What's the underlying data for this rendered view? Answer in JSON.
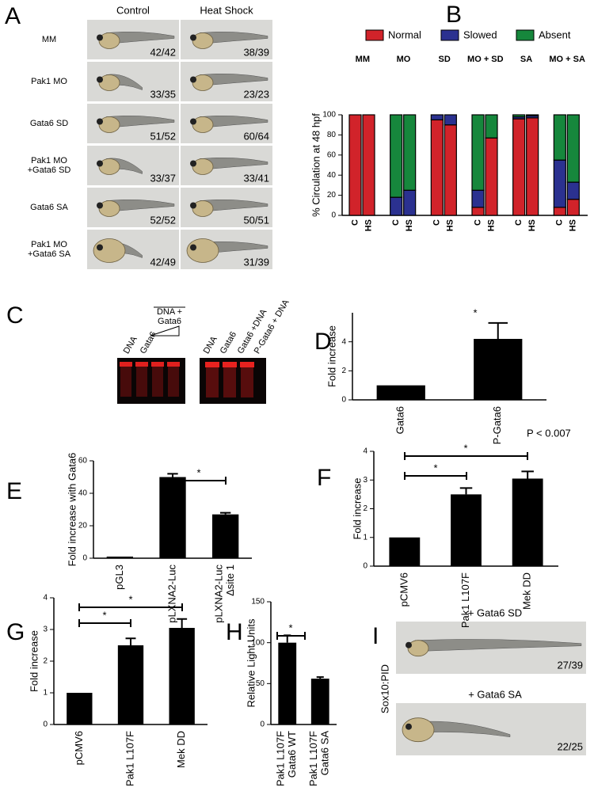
{
  "figure": {
    "panel_a": {
      "label": "A",
      "columns": [
        "Control",
        "Heat Shock"
      ],
      "rows": [
        {
          "label": "MM",
          "counts": [
            "42/42",
            "38/39"
          ]
        },
        {
          "label": "Pak1 MO",
          "counts": [
            "33/35",
            "23/23"
          ]
        },
        {
          "label": "Gata6 SD",
          "counts": [
            "51/52",
            "60/64"
          ]
        },
        {
          "label": "Pak1 MO\n+Gata6 SD",
          "counts": [
            "33/37",
            "33/41"
          ]
        },
        {
          "label": "Gata6 SA",
          "counts": [
            "52/52",
            "50/51"
          ]
        },
        {
          "label": "Pak1 MO\n+Gata6 SA",
          "counts": [
            "42/49",
            "31/39"
          ]
        }
      ]
    },
    "panel_c": {
      "label": "C",
      "left_lanes": [
        "DNA",
        "Gata6",
        "DNA +\nGata6"
      ],
      "right_lanes": [
        "DNA",
        "Gata6",
        "Gata6 +DNA",
        "P-Gata6 + DNA"
      ]
    },
    "panel_i": {
      "label": "I",
      "side_label": "Sox10:PID",
      "images": [
        {
          "caption": "+ Gata6 SD",
          "count": "27/39"
        },
        {
          "caption": "+ Gata6 SA",
          "count": "22/25"
        }
      ]
    }
  },
  "chart_data": [
    {
      "panel": "B",
      "type": "stacked_bar",
      "ylabel": "% Circulation at 48 hpf",
      "groups": [
        "MM",
        "MO",
        "SD",
        "MO + SD",
        "SA",
        "MO + SA"
      ],
      "categories": [
        "C",
        "HS",
        "C",
        "HS",
        "C",
        "HS",
        "C",
        "HS",
        "C",
        "HS",
        "C",
        "HS"
      ],
      "series": [
        {
          "name": "Normal",
          "color": "#d1232a",
          "values": [
            100,
            100,
            0,
            0,
            95,
            90,
            8,
            77,
            96,
            97,
            8,
            16
          ]
        },
        {
          "name": "Slowed",
          "color": "#2b3190",
          "values": [
            0,
            0,
            18,
            25,
            5,
            10,
            17,
            0,
            2,
            2,
            47,
            17
          ]
        },
        {
          "name": "Absent",
          "color": "#16873c",
          "values": [
            0,
            0,
            82,
            75,
            0,
            0,
            75,
            23,
            2,
            1,
            45,
            67
          ]
        }
      ],
      "ylim": [
        0,
        100
      ],
      "yticks": [
        0,
        20,
        40,
        60,
        80,
        100
      ],
      "legend": "top"
    },
    {
      "panel": "D",
      "type": "bar",
      "ylabel": "Fold increase",
      "categories": [
        "Gata6",
        "P-Gata6"
      ],
      "values": [
        1,
        4.2
      ],
      "errors": [
        null,
        1.1
      ],
      "color": "#000000",
      "ylim": [
        0,
        6
      ],
      "yticks": [
        0,
        2,
        4
      ],
      "annotations": [
        "*",
        "P < 0.007"
      ]
    },
    {
      "panel": "E",
      "type": "bar",
      "ylabel": "Fold increase with Gata6",
      "categories": [
        "pGL3",
        "pLXNA2-Luc",
        "pLXNA2-Luc\nΔsite 1"
      ],
      "values": [
        1,
        50,
        27
      ],
      "errors": [
        null,
        2,
        1
      ],
      "color": "#000000",
      "ylim": [
        0,
        60
      ],
      "yticks": [
        0,
        20,
        40,
        60
      ],
      "annotations": [
        "*"
      ]
    },
    {
      "panel": "F",
      "type": "bar",
      "ylabel": "Fold increase",
      "categories": [
        "pCMV6",
        "Pak1 L107F",
        "Mek DD"
      ],
      "values": [
        1,
        2.5,
        3.05
      ],
      "errors": [
        null,
        0.22,
        0.25
      ],
      "color": "#000000",
      "ylim": [
        0,
        4
      ],
      "yticks": [
        0,
        1,
        2,
        3,
        4
      ],
      "annotations": [
        "*",
        "*"
      ]
    },
    {
      "panel": "G",
      "type": "bar",
      "ylabel": "Fold increase",
      "categories": [
        "pCMV6",
        "Pak1 L107F",
        "Mek DD"
      ],
      "values": [
        1,
        2.5,
        3.05
      ],
      "errors": [
        null,
        0.22,
        0.28
      ],
      "color": "#000000",
      "ylim": [
        0,
        4
      ],
      "yticks": [
        0,
        1,
        2,
        3,
        4
      ],
      "annotations": [
        "*",
        "*"
      ]
    },
    {
      "panel": "H",
      "type": "bar",
      "ylabel": "Relative Light Units",
      "categories": [
        "Pak1 L107F\nGata6 WT",
        "Pak1 L107F\nGata6 SA"
      ],
      "values": [
        100,
        56
      ],
      "errors": [
        9,
        2
      ],
      "color": "#000000",
      "ylim": [
        0,
        150
      ],
      "yticks": [
        0,
        50,
        100,
        150
      ],
      "annotations": [
        "*"
      ]
    }
  ]
}
